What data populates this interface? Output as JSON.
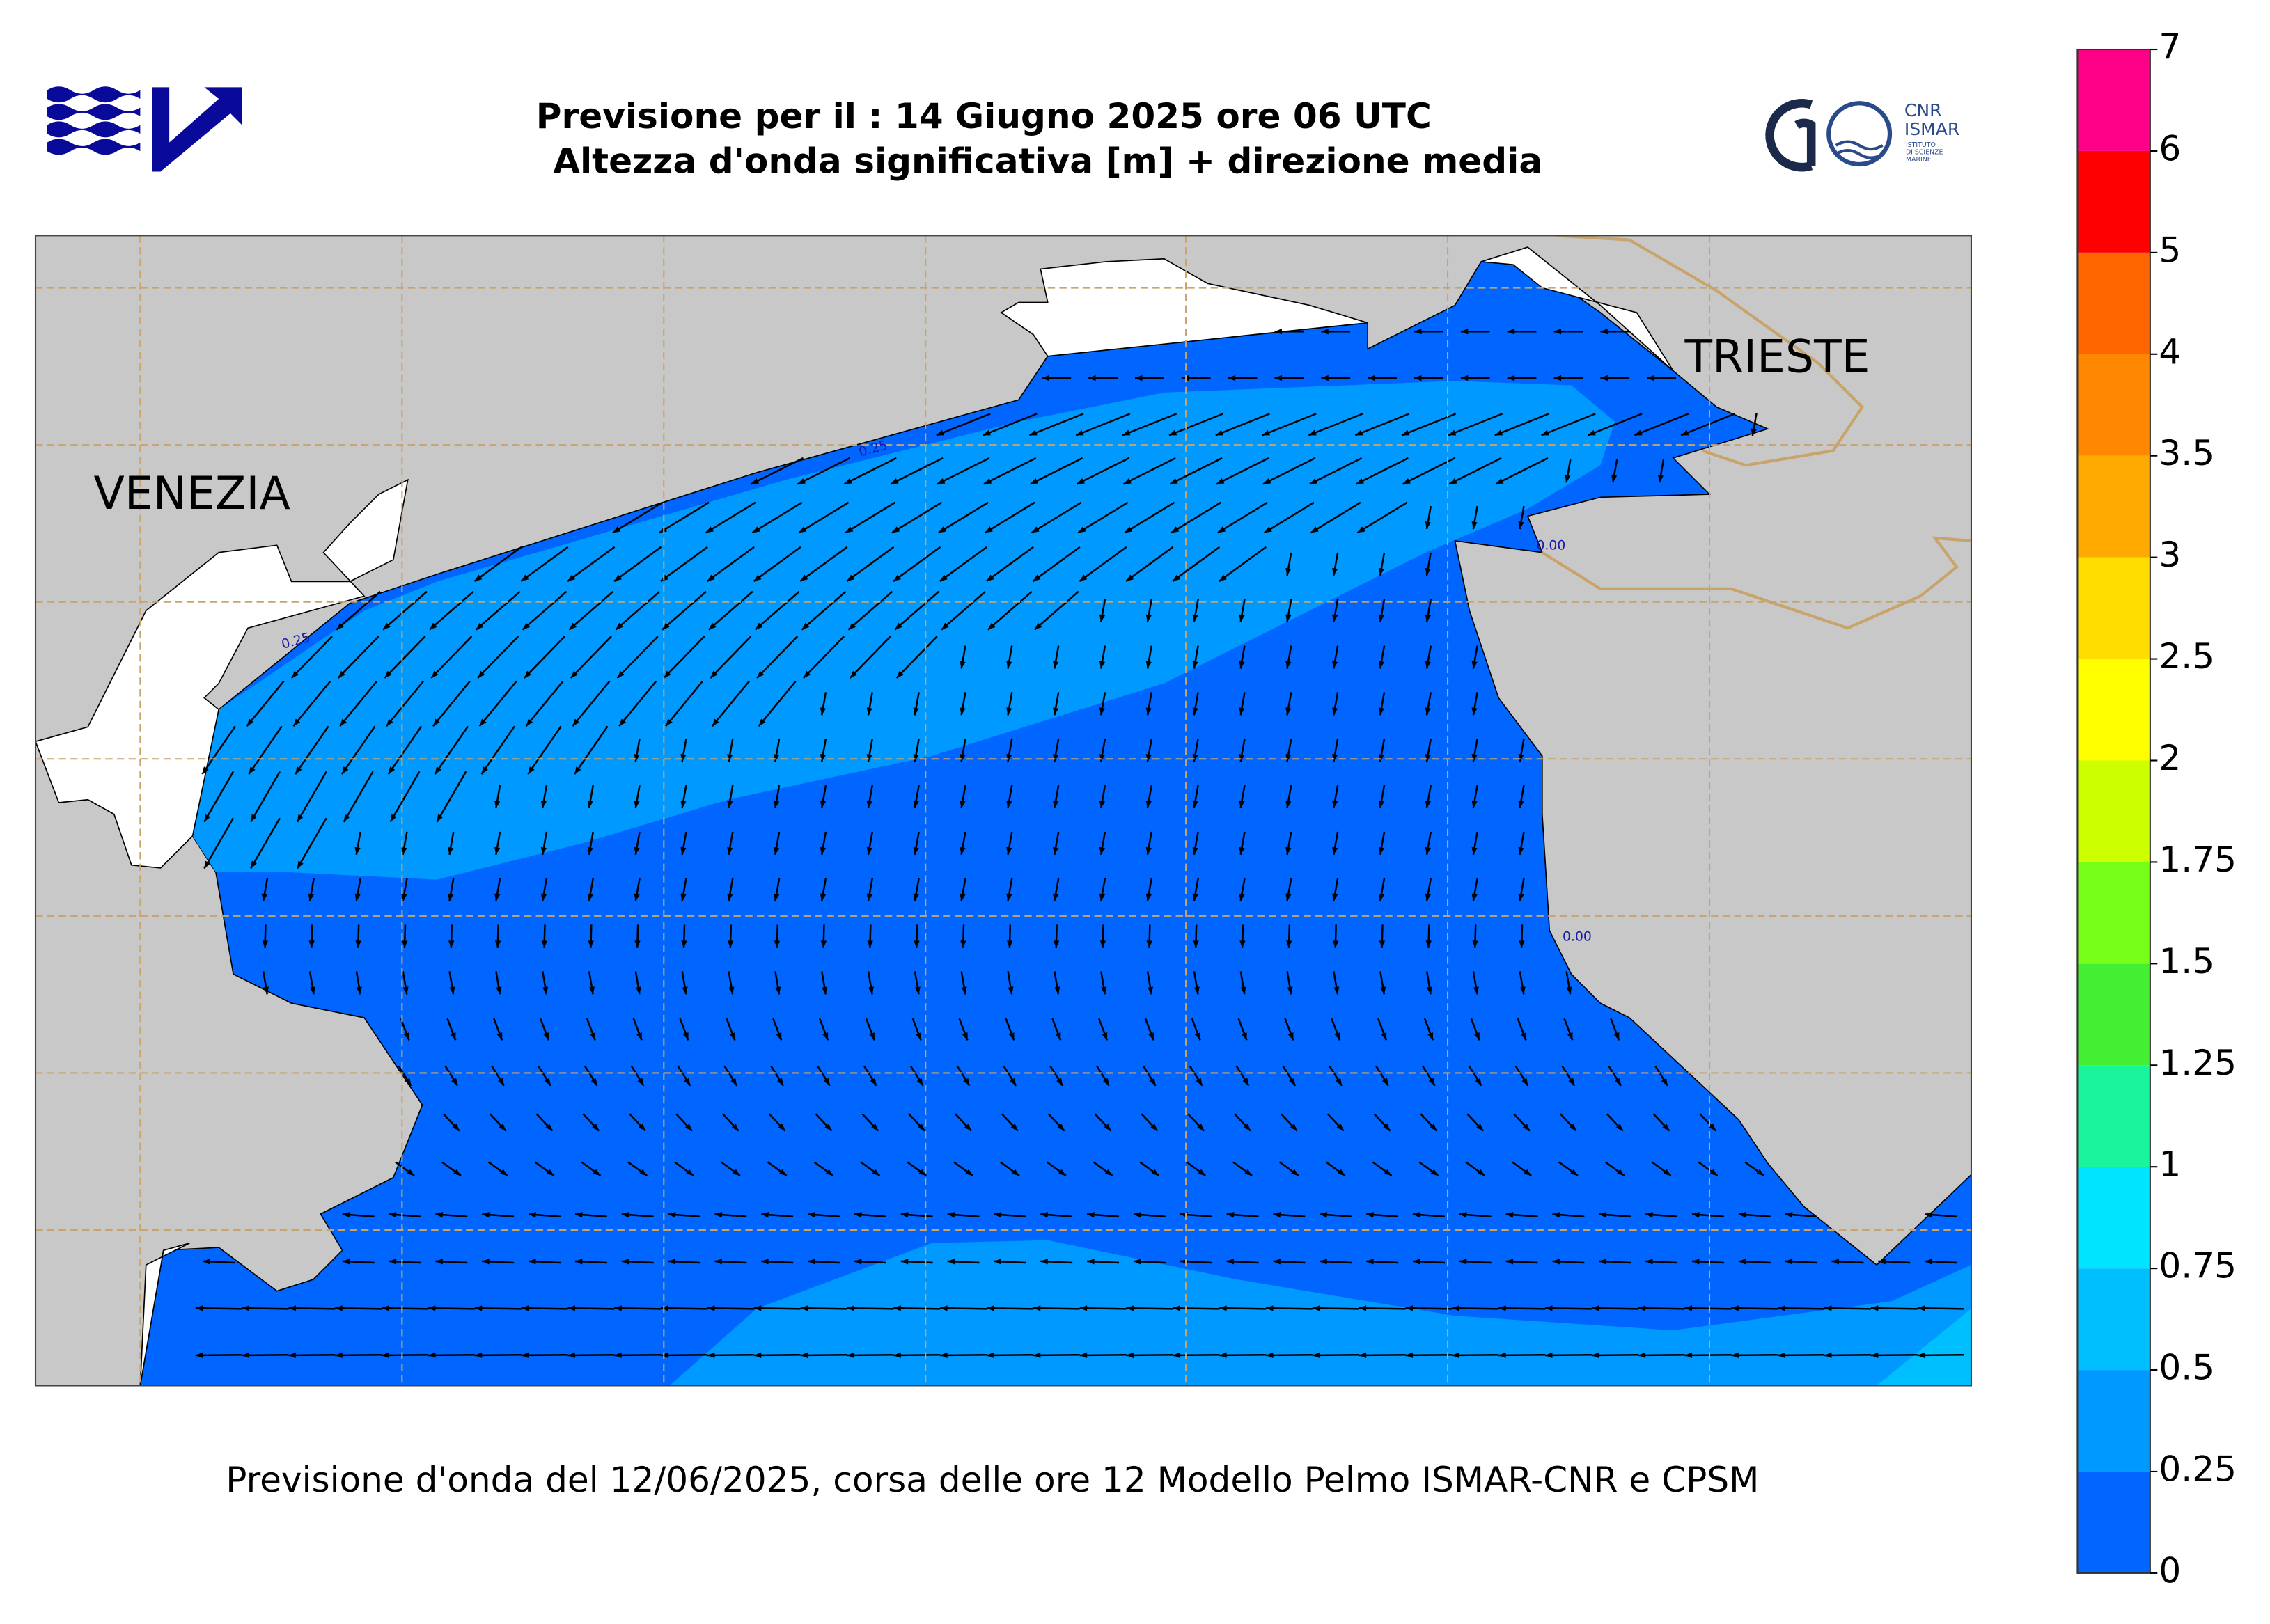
{
  "header": {
    "title_line1": "Previsione per il : 14 Giugno 2025 ore 06 UTC",
    "title_line2": "Altezza d'onda significativa [m] + direzione media"
  },
  "logo": {
    "cnr": "CNR",
    "ismar": "ISMAR",
    "institute": [
      "ISTITUTO",
      "DI SCIENZE",
      "MARINE"
    ]
  },
  "map": {
    "places": [
      "VENEZIA",
      "TRIESTE"
    ],
    "contour_labels": [
      "0.25",
      "0.25",
      "0.00",
      "0.00"
    ]
  },
  "footer": "Previsione d'onda del 12/06/2025, corsa delle ore 12 Modello Pelmo ISMAR-CNR e CPSM",
  "colorbar": {
    "levels": [
      0,
      0.25,
      0.5,
      0.75,
      1,
      1.25,
      1.5,
      1.75,
      2,
      2.5,
      3,
      3.5,
      4,
      5,
      6,
      7
    ],
    "colors": [
      "#0066ff",
      "#0099ff",
      "#00bfff",
      "#00e5ff",
      "#19f59b",
      "#44ee33",
      "#77ff1a",
      "#ccff00",
      "#ffff00",
      "#ffdd00",
      "#ffaa00",
      "#ff8800",
      "#ff6600",
      "#ff0000",
      "#ff0088"
    ]
  }
}
